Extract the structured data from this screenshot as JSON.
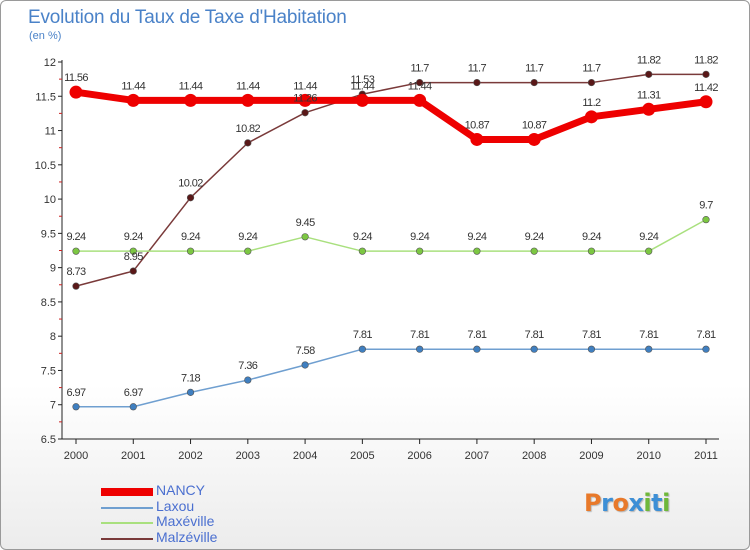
{
  "title": "Evolution du Taux de Taxe d'Habitation",
  "subtitle": "(en %)",
  "logo": "Proxiti",
  "logo_colors": [
    "#e8792a",
    "#3d8fd6",
    "#e8792a",
    "#3d8fd6",
    "#6fb83a",
    "#3d8fd6",
    "#6fb83a"
  ],
  "chart_data": {
    "type": "line",
    "title": "Evolution du Taux de Taxe d'Habitation",
    "ylabel": "(en %)",
    "xlabel": "",
    "x": [
      "2000",
      "2001",
      "2002",
      "2003",
      "2004",
      "2005",
      "2006",
      "2007",
      "2008",
      "2009",
      "2010",
      "2011"
    ],
    "ylim": [
      6.5,
      12
    ],
    "yticks": [
      "6.5",
      "7",
      "7.5",
      "8",
      "8.5",
      "9",
      "9.5",
      "10",
      "10.5",
      "11",
      "11.5",
      "12"
    ],
    "grid": false,
    "legend_position": "bottom-left",
    "series": [
      {
        "name": "Malzéville",
        "color": "#7a3a3a",
        "point_color": "#5a1818",
        "values": [
          8.73,
          8.95,
          10.02,
          10.82,
          11.26,
          11.53,
          11.7,
          11.7,
          11.7,
          11.7,
          11.82,
          11.82
        ],
        "labels": [
          "8.73",
          "8.95",
          "10.02",
          "10.82",
          "11.26",
          "11.53",
          "11.7",
          "11.7",
          "11.7",
          "11.7",
          "11.82",
          "11.82"
        ]
      },
      {
        "name": "Maxéville",
        "color": "#a9e07e",
        "point_color": "#7cc742",
        "values": [
          9.24,
          9.24,
          9.24,
          9.24,
          9.45,
          9.24,
          9.24,
          9.24,
          9.24,
          9.24,
          9.24,
          9.7
        ],
        "labels": [
          "9.24",
          "9.24",
          "9.24",
          "9.24",
          "9.45",
          "9.24",
          "9.24",
          "9.24",
          "9.24",
          "9.24",
          "9.24",
          "9.7"
        ]
      },
      {
        "name": "Laxou",
        "color": "#6f9fd0",
        "point_color": "#3f7fc0",
        "values": [
          6.97,
          6.97,
          7.18,
          7.36,
          7.58,
          7.81,
          7.81,
          7.81,
          7.81,
          7.81,
          7.81,
          7.81
        ],
        "labels": [
          "6.97",
          "6.97",
          "7.18",
          "7.36",
          "7.58",
          "7.81",
          "7.81",
          "7.81",
          "7.81",
          "7.81",
          "7.81",
          "7.81"
        ]
      },
      {
        "name": "NANCY",
        "color": "#ee0000",
        "point_color": "#ee0000",
        "values": [
          11.56,
          11.44,
          11.44,
          11.44,
          11.44,
          11.44,
          11.44,
          10.87,
          10.87,
          11.2,
          11.31,
          11.42
        ],
        "labels": [
          "11.56",
          "11.44",
          "11.44",
          "11.44",
          "11.44",
          "11.44",
          "11.44",
          "10.87",
          "10.87",
          "11.2",
          "11.31",
          "11.42"
        ]
      }
    ],
    "legend": [
      "NANCY",
      "Laxou",
      "Maxéville",
      "Malzéville"
    ]
  }
}
